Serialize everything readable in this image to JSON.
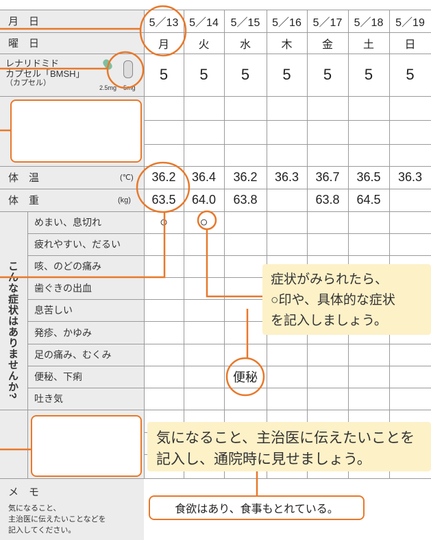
{
  "date_label": "月　日",
  "weekday_label": "曜　日",
  "days": [
    {
      "date": "5／13",
      "weekday": "月",
      "dose": "5",
      "temp": "36.2",
      "weight": "63.5"
    },
    {
      "date": "5／14",
      "weekday": "火",
      "dose": "5",
      "temp": "36.4",
      "weight": "64.0"
    },
    {
      "date": "5／15",
      "weekday": "水",
      "dose": "5",
      "temp": "36.2",
      "weight": "63.8"
    },
    {
      "date": "5／16",
      "weekday": "木",
      "dose": "5",
      "temp": "36.3",
      "weight": null
    },
    {
      "date": "5／17",
      "weekday": "金",
      "dose": "5",
      "temp": "36.7",
      "weight": "63.8"
    },
    {
      "date": "5／18",
      "weekday": "土",
      "dose": "5",
      "temp": "36.5",
      "weight": "64.5"
    },
    {
      "date": "5／19",
      "weekday": "日",
      "dose": "5",
      "temp": "36.3",
      "weight": null
    }
  ],
  "drug": {
    "lines": [
      "レナリドミド",
      "カプセル「BMSH」",
      "（カプセル）"
    ],
    "strengths": [
      "2.5mg",
      "5mg"
    ]
  },
  "temp_label": "体　温",
  "temp_unit": "(℃)",
  "weight_label": "体　重",
  "weight_unit": "(kg)",
  "symptom_section_label": "こんな症状はありませんか?",
  "symptoms": [
    {
      "label": "めまい、息切れ",
      "entries": [
        "○",
        "○",
        null,
        null,
        null,
        null,
        null
      ]
    },
    {
      "label": "疲れやすい、だるい",
      "entries": [
        null,
        null,
        null,
        null,
        null,
        null,
        null
      ]
    },
    {
      "label": "咳、のどの痛み",
      "entries": [
        null,
        null,
        null,
        null,
        null,
        null,
        null
      ]
    },
    {
      "label": "歯ぐきの出血",
      "entries": [
        null,
        null,
        null,
        null,
        null,
        null,
        null
      ]
    },
    {
      "label": "息苦しい",
      "entries": [
        null,
        null,
        null,
        null,
        null,
        null,
        null
      ]
    },
    {
      "label": "発疹、かゆみ",
      "entries": [
        null,
        null,
        null,
        null,
        null,
        null,
        null
      ]
    },
    {
      "label": "足の痛み、むくみ",
      "entries": [
        null,
        null,
        null,
        null,
        null,
        null,
        null
      ]
    },
    {
      "label": "便秘、下痢",
      "entries": [
        null,
        null,
        "便秘",
        null,
        null,
        null,
        null
      ]
    },
    {
      "label": "吐き気",
      "entries": [
        null,
        null,
        null,
        null,
        null,
        null,
        null
      ]
    }
  ],
  "callouts": [
    {
      "lines": [
        "症状がみられたら、",
        "○印や、具体的な症状",
        "を記入しましょう。"
      ]
    },
    {
      "lines": [
        "気になること、主治医に伝えたいことを",
        "記入し、通院時に見せましょう。"
      ]
    }
  ],
  "memo": {
    "label": "メ　モ",
    "note_lines": [
      "気になること、",
      "主治医に伝えたいことなどを",
      "記入してください。"
    ],
    "entry": "食欲はあり、食事もとれている。"
  }
}
